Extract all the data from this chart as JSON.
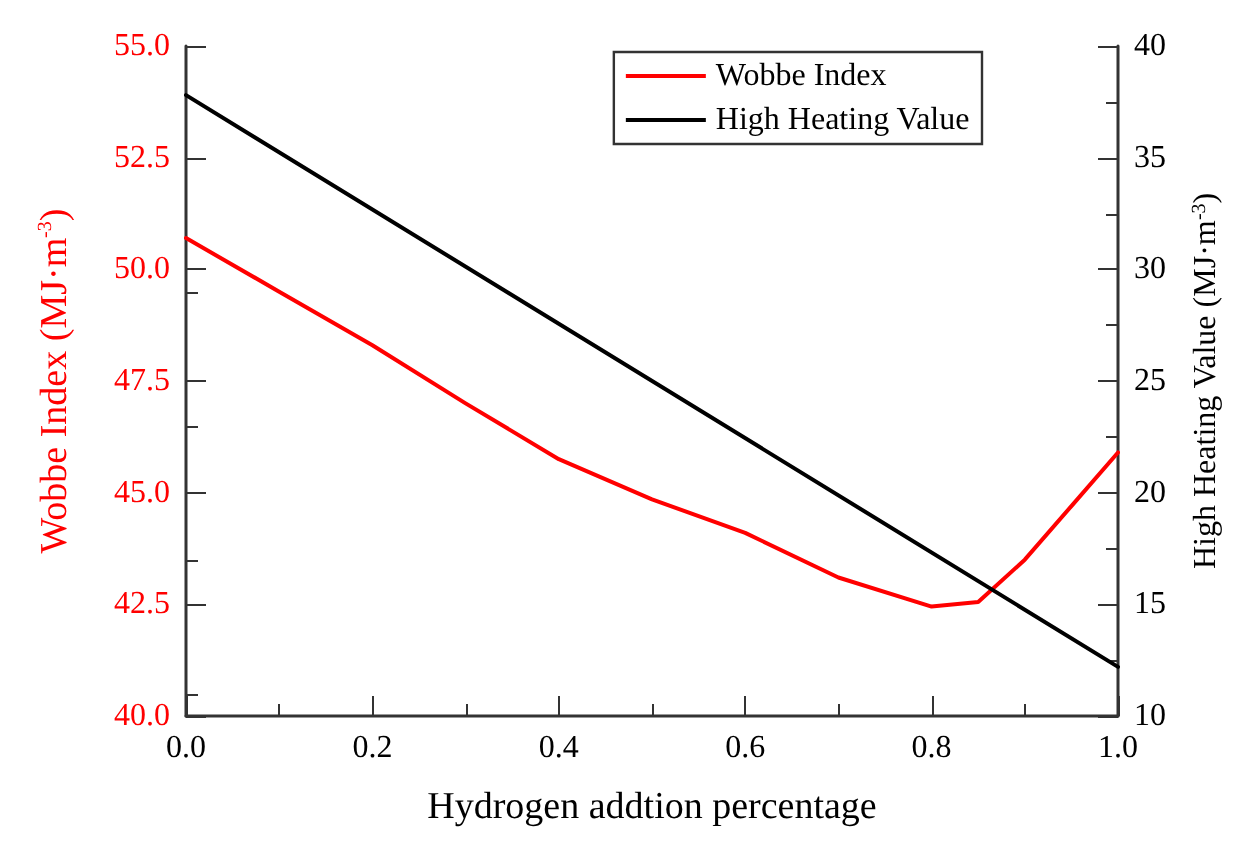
{
  "chart_data": {
    "type": "line",
    "xlabel": "Hydrogen addtion percentage",
    "ylabel": "Wobbe Index (MJ·m$^{-3}$)",
    "y2label": "High Heating Value (MJ·m$^{-3}$)",
    "x": [
      0,
      0.1,
      0.2,
      0.3,
      0.4,
      0.5,
      0.6,
      0.7,
      0.8,
      0.85,
      0.9,
      0.95,
      1.0
    ],
    "series": [
      {
        "name": "Wobbe Index",
        "color": "#ff0000",
        "values": [
          50.7,
          49.5,
          48.3,
          47.0,
          45.75,
          44.85,
          44.1,
          43.1,
          42.45,
          42.55,
          43.5,
          44.7,
          45.9
        ]
      },
      {
        "name": "High Heating Value",
        "color": "#000000",
        "axis": "y2",
        "x": [
          0,
          1.0
        ],
        "values": [
          37.8,
          12.2
        ]
      }
    ],
    "xlim": [
      0,
      1.0
    ],
    "xticks": [
      {
        "value": 0,
        "label": "0.0"
      },
      0.2,
      0.4,
      0.6,
      0.8,
      {
        "value": 1.0,
        "label": "1.0"
      }
    ],
    "ylim": [
      40,
      55
    ],
    "yticks": [
      {
        "value": 40,
        "label": "40.0"
      },
      42.5,
      {
        "value": 45,
        "label": "45.0"
      },
      47.5,
      {
        "value": 50,
        "label": "50.0"
      },
      52.5,
      {
        "value": 55,
        "label": "55.0"
      }
    ],
    "y2lim": [
      10,
      40
    ],
    "y2ticks": [
      10,
      15,
      20,
      25,
      30,
      35,
      40
    ],
    "legend": "top right",
    "grid": false,
    "marker": "none",
    "line_style": "solid"
  }
}
